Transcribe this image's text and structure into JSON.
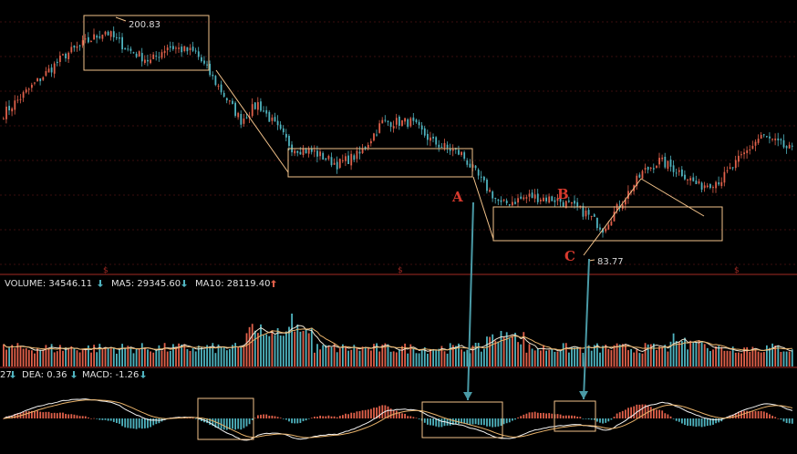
{
  "chart_data": [
    {
      "type": "candlestick",
      "title": "",
      "price_labels": {
        "high": "200.83",
        "low": "83.77"
      },
      "pattern_labels": [
        "A",
        "B",
        "C"
      ],
      "keypoints": [
        {
          "t": 0,
          "p": 152
        },
        {
          "t": 10,
          "p": 168
        },
        {
          "t": 22,
          "p": 187
        },
        {
          "t": 30,
          "p": 195
        },
        {
          "t": 36,
          "p": 201
        },
        {
          "t": 44,
          "p": 190
        },
        {
          "t": 52,
          "p": 183
        },
        {
          "t": 58,
          "p": 192
        },
        {
          "t": 68,
          "p": 188
        },
        {
          "t": 78,
          "p": 163
        },
        {
          "t": 84,
          "p": 148
        },
        {
          "t": 90,
          "p": 158
        },
        {
          "t": 102,
          "p": 132
        },
        {
          "t": 110,
          "p": 129
        },
        {
          "t": 118,
          "p": 122
        },
        {
          "t": 126,
          "p": 128
        },
        {
          "t": 134,
          "p": 147
        },
        {
          "t": 144,
          "p": 147
        },
        {
          "t": 152,
          "p": 135
        },
        {
          "t": 162,
          "p": 128
        },
        {
          "t": 170,
          "p": 110
        },
        {
          "t": 176,
          "p": 98
        },
        {
          "t": 186,
          "p": 103
        },
        {
          "t": 196,
          "p": 101
        },
        {
          "t": 206,
          "p": 93
        },
        {
          "t": 212,
          "p": 84
        },
        {
          "t": 218,
          "p": 98
        },
        {
          "t": 226,
          "p": 117
        },
        {
          "t": 232,
          "p": 124
        },
        {
          "t": 240,
          "p": 117
        },
        {
          "t": 246,
          "p": 109
        },
        {
          "t": 254,
          "p": 113
        },
        {
          "t": 262,
          "p": 128
        },
        {
          "t": 268,
          "p": 139
        },
        {
          "t": 279,
          "p": 130
        }
      ],
      "price_range": [
        60,
        215
      ],
      "grid": true,
      "colors": {
        "up": "#e0604a",
        "down": "#4fb3bf",
        "box": "#f2c28a",
        "arrow": "#4a9aa6",
        "text": "#d83a2e",
        "grid": "#3a0e0e",
        "divider": "#a32a24"
      }
    },
    {
      "type": "bar",
      "title": "VOLUME",
      "indicators": {
        "volume": {
          "label": "VOLUME: 34546.11",
          "arrow": "down"
        },
        "ma5": {
          "label": "MA5: 29345.60",
          "arrow": "down"
        },
        "ma10": {
          "label": "MA10: 28119.40",
          "arrow": "up"
        }
      }
    },
    {
      "type": "macd",
      "indicators": {
        "dif": {
          "label": "27",
          "arrow": "down"
        },
        "dea": {
          "label": "DEA: 0.36",
          "arrow": "down"
        },
        "macd": {
          "label": "MACD: -1.26",
          "arrow": "down"
        }
      }
    }
  ]
}
